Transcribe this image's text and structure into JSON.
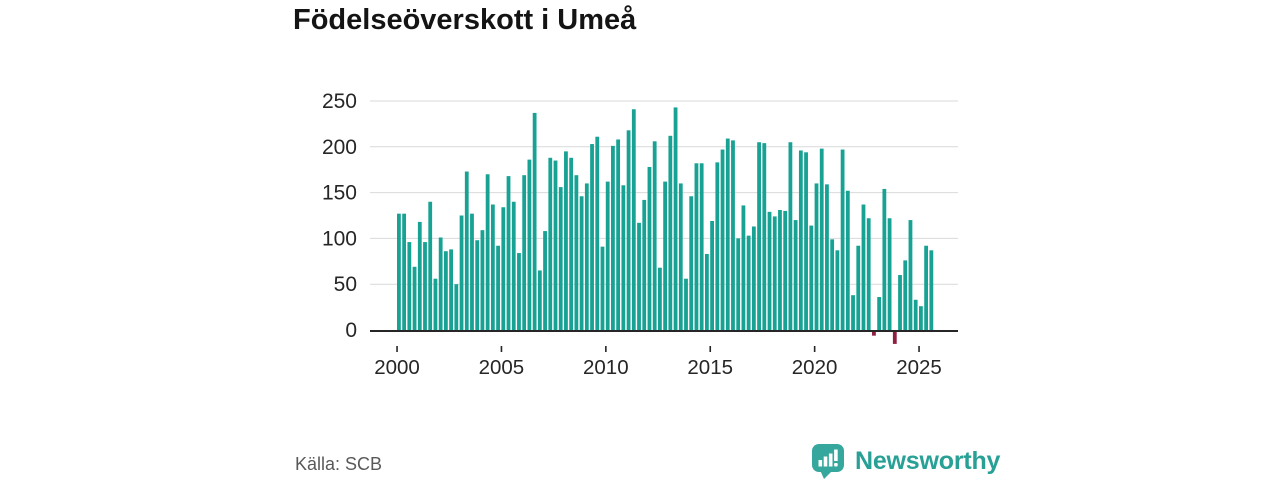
{
  "title": "Födelseöverskott i Umeå",
  "source": "Källa: SCB",
  "logo": {
    "text": "Newsworthy"
  },
  "colors": {
    "background": "#ffffff",
    "bar": "#17a294",
    "bar_negative": "#8e1f41",
    "grid": "#d9d9d9",
    "axis_line": "#262626",
    "tick_label": "#262626",
    "title_text": "#141414",
    "source_text": "#595959",
    "logo_icon": "#35a79d",
    "logo_text": "#28a096"
  },
  "chart_data": {
    "type": "bar",
    "title": "Födelseöverskott i Umeå",
    "frequency": "quarterly",
    "start": "2000-Q1",
    "end": "2025-Q3",
    "xlabel": "",
    "ylabel": "",
    "ylim": [
      -25,
      250
    ],
    "y_ticks": [
      0,
      50,
      100,
      150,
      200,
      250
    ],
    "x_ticks": [
      2000,
      2005,
      2010,
      2015,
      2020,
      2025
    ],
    "grid": true,
    "legend": false,
    "categories": [
      "2000-Q1",
      "2000-Q2",
      "2000-Q3",
      "2000-Q4",
      "2001-Q1",
      "2001-Q2",
      "2001-Q3",
      "2001-Q4",
      "2002-Q1",
      "2002-Q2",
      "2002-Q3",
      "2002-Q4",
      "2003-Q1",
      "2003-Q2",
      "2003-Q3",
      "2003-Q4",
      "2004-Q1",
      "2004-Q2",
      "2004-Q3",
      "2004-Q4",
      "2005-Q1",
      "2005-Q2",
      "2005-Q3",
      "2005-Q4",
      "2006-Q1",
      "2006-Q2",
      "2006-Q3",
      "2006-Q4",
      "2007-Q1",
      "2007-Q2",
      "2007-Q3",
      "2007-Q4",
      "2008-Q1",
      "2008-Q2",
      "2008-Q3",
      "2008-Q4",
      "2009-Q1",
      "2009-Q2",
      "2009-Q3",
      "2009-Q4",
      "2010-Q1",
      "2010-Q2",
      "2010-Q3",
      "2010-Q4",
      "2011-Q1",
      "2011-Q2",
      "2011-Q3",
      "2011-Q4",
      "2012-Q1",
      "2012-Q2",
      "2012-Q3",
      "2012-Q4",
      "2013-Q1",
      "2013-Q2",
      "2013-Q3",
      "2013-Q4",
      "2014-Q1",
      "2014-Q2",
      "2014-Q3",
      "2014-Q4",
      "2015-Q1",
      "2015-Q2",
      "2015-Q3",
      "2015-Q4",
      "2016-Q1",
      "2016-Q2",
      "2016-Q3",
      "2016-Q4",
      "2017-Q1",
      "2017-Q2",
      "2017-Q3",
      "2017-Q4",
      "2018-Q1",
      "2018-Q2",
      "2018-Q3",
      "2018-Q4",
      "2019-Q1",
      "2019-Q2",
      "2019-Q3",
      "2019-Q4",
      "2020-Q1",
      "2020-Q2",
      "2020-Q3",
      "2020-Q4",
      "2021-Q1",
      "2021-Q2",
      "2021-Q3",
      "2021-Q4",
      "2022-Q1",
      "2022-Q2",
      "2022-Q3",
      "2022-Q4",
      "2023-Q1",
      "2023-Q2",
      "2023-Q3",
      "2023-Q4",
      "2024-Q1",
      "2024-Q2",
      "2024-Q3",
      "2024-Q4",
      "2025-Q1",
      "2025-Q2",
      "2025-Q3"
    ],
    "values": [
      127,
      127,
      96,
      69,
      118,
      96,
      140,
      56,
      101,
      86,
      88,
      50,
      125,
      173,
      127,
      98,
      109,
      170,
      137,
      92,
      134,
      168,
      140,
      84,
      169,
      186,
      237,
      65,
      108,
      188,
      185,
      156,
      195,
      188,
      169,
      146,
      160,
      203,
      211,
      91,
      162,
      201,
      208,
      158,
      218,
      241,
      117,
      142,
      178,
      206,
      68,
      162,
      212,
      243,
      160,
      56,
      146,
      182,
      182,
      83,
      119,
      183,
      197,
      209,
      207,
      100,
      136,
      103,
      113,
      205,
      204,
      129,
      124,
      131,
      130,
      205,
      120,
      196,
      194,
      114,
      160,
      198,
      159,
      99,
      87,
      197,
      152,
      38,
      92,
      137,
      122,
      -4,
      36,
      154,
      122,
      -13,
      60,
      76,
      120,
      33,
      26,
      92,
      87
    ]
  }
}
